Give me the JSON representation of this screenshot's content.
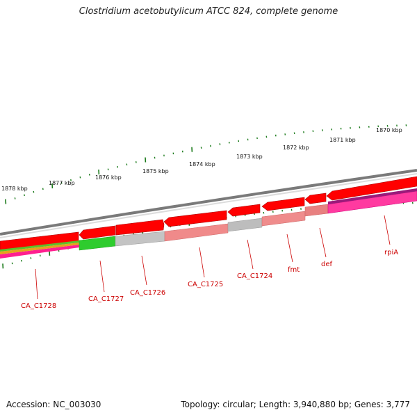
{
  "title": "Clostridium acetobutylicum ATCC 824, complete genome",
  "footer": {
    "accession": "Accession: NC_003030",
    "summary": "Topology: circular; Length: 3,940,880 bp; Genes: 3,777"
  },
  "colors": {
    "backbone": "#7d7d7d",
    "forward_gene": "#ff0000",
    "tick": "#1a7a1a",
    "label": "#cc0000"
  },
  "kbp_labels": [
    "1870 kbp",
    "1871 kbp",
    "1872 kbp",
    "1873 kbp",
    "1874 kbp",
    "1875 kbp",
    "1876 kbp",
    "1877 kbp",
    "1878 kbp"
  ],
  "genes": [
    {
      "name": "rpiA",
      "color": "#e8007d"
    },
    {
      "name": "def",
      "color": "#e88080"
    },
    {
      "name": "fmt",
      "color": "#ef8c8c"
    },
    {
      "name": "CA_C1724",
      "color": "#bdbdbd"
    },
    {
      "name": "CA_C1725",
      "color": "#f08a8a"
    },
    {
      "name": "CA_C1726",
      "color": "#c4c4c4"
    },
    {
      "name": "CA_C1727",
      "color": "#2ecc2e"
    },
    {
      "name": "CA_C1728",
      "color": "#ff1f8f"
    }
  ]
}
